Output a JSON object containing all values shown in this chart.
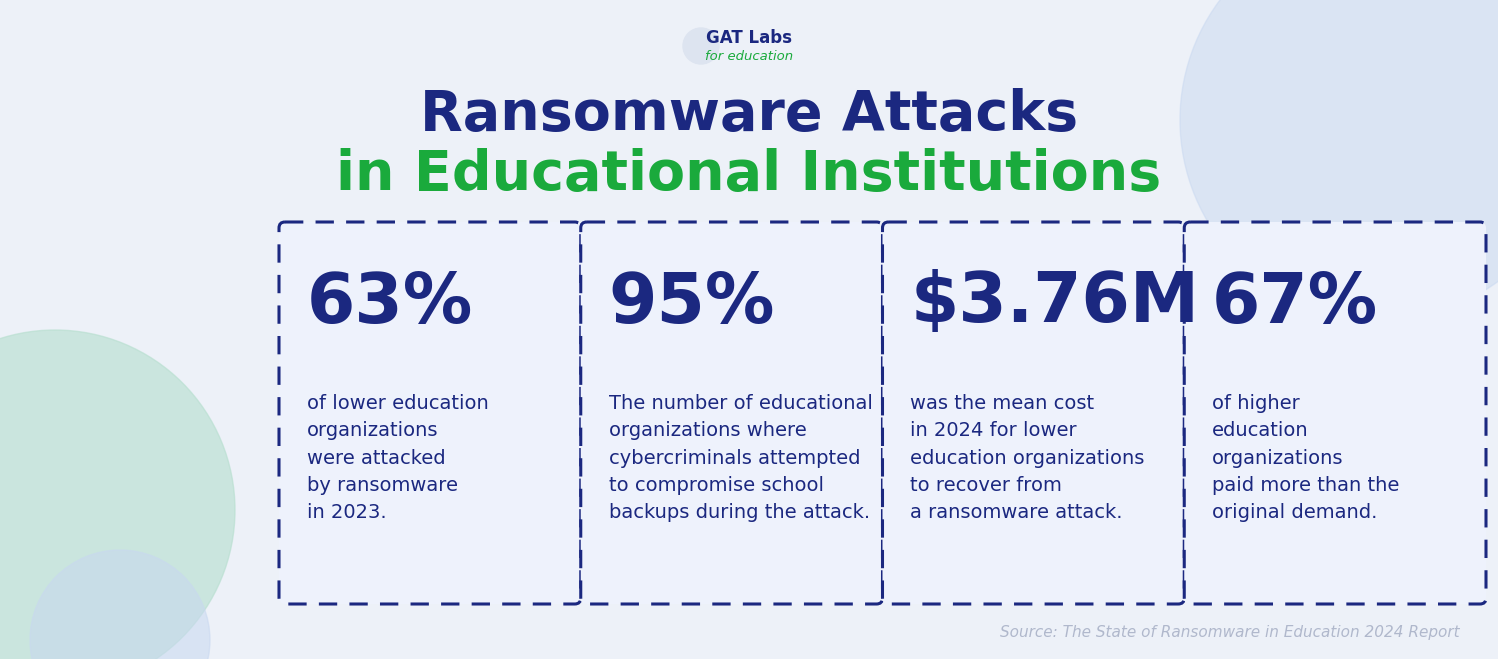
{
  "title_line1": "Ransomware Attacks",
  "title_line2": "in Educational Institutions",
  "title_line1_color": "#1b2880",
  "title_line2_color": "#1aaa3c",
  "bg_color": "#edf1f8",
  "card_bg_color": "#edf1f8",
  "card_border_color": "#1b2880",
  "stats": [
    {
      "value": "63%",
      "description": "of lower education\norganizations\nwere attacked\nby ransomware\nin 2023.",
      "value_color": "#1b2880"
    },
    {
      "value": "95%",
      "description": "The number of educational\norganizations where\ncybercriminals attempted\nto compromise school\nbackups during the attack.",
      "value_color": "#1b2880"
    },
    {
      "value": "$3.76M",
      "description": "was the mean cost\nin 2024 for lower\neducation organizations\nto recover from\na ransomware attack.",
      "value_color": "#1b2880"
    },
    {
      "value": "67%",
      "description": "of higher\neducation\norganizations\npaid more than the\noriginal demand.",
      "value_color": "#1b2880"
    }
  ],
  "source_text": "Source: The State of Ransomware in Education 2024 Report",
  "source_color": "#b0b8cc",
  "logo_text": "GAT Labs",
  "logo_sub": "for education",
  "logo_color": "#1b2880",
  "logo_sub_color": "#1aaa3c",
  "circle_teal_color": "#b8dfd0",
  "circle_blue_color": "#c8d8f0",
  "card_face_color": "#eef2fc"
}
